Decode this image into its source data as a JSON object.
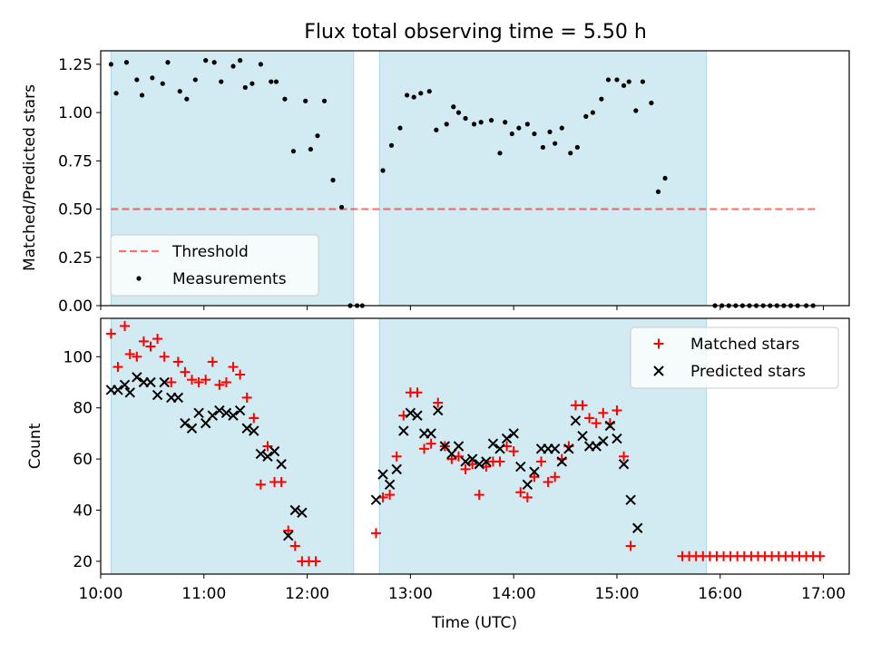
{
  "figure_title": "Flux total observing time = 5.50 h",
  "colors": {
    "shade": "#add8e6",
    "threshold": "#ff0000",
    "measurement": "#000000",
    "matched": "#ff0000",
    "predicted": "#000000"
  },
  "chart_data": [
    {
      "type": "scatter",
      "panel": "top",
      "title": "Flux total observing time = 5.50 h",
      "xlabel": "",
      "ylabel": "Matched/Predicted stars",
      "xlim": [
        "10:00",
        "17:15"
      ],
      "ylim": [
        0,
        1.32
      ],
      "yticks": [
        0.0,
        0.25,
        0.5,
        0.75,
        1.0,
        1.25
      ],
      "ytick_labels": [
        "0.00",
        "0.25",
        "0.50",
        "0.75",
        "1.00",
        "1.25"
      ],
      "shaded_intervals": [
        [
          "10:06",
          "12:27"
        ],
        [
          "12:42",
          "15:52"
        ]
      ],
      "threshold": {
        "name": "Threshold",
        "value": 0.5,
        "x_range": [
          "10:06",
          "16:57"
        ],
        "style": "dashed"
      },
      "legend_position": "lower-left",
      "series": [
        {
          "name": "Measurements",
          "points": [
            [
              "10:06",
              1.25
            ],
            [
              "10:09",
              1.1
            ],
            [
              "10:15",
              1.26
            ],
            [
              "10:21",
              1.17
            ],
            [
              "10:24",
              1.09
            ],
            [
              "10:30",
              1.18
            ],
            [
              "10:36",
              1.15
            ],
            [
              "10:39",
              1.26
            ],
            [
              "10:46",
              1.11
            ],
            [
              "10:50",
              1.07
            ],
            [
              "10:55",
              1.17
            ],
            [
              "11:01",
              1.27
            ],
            [
              "11:06",
              1.26
            ],
            [
              "11:10",
              1.16
            ],
            [
              "11:17",
              1.24
            ],
            [
              "11:21",
              1.27
            ],
            [
              "11:24",
              1.13
            ],
            [
              "11:28",
              1.15
            ],
            [
              "11:33",
              1.25
            ],
            [
              "11:39",
              1.16
            ],
            [
              "11:42",
              1.16
            ],
            [
              "11:47",
              1.07
            ],
            [
              "11:52",
              0.8
            ],
            [
              "11:59",
              1.06
            ],
            [
              "12:02",
              0.81
            ],
            [
              "12:06",
              0.88
            ],
            [
              "12:10",
              1.06
            ],
            [
              "12:15",
              0.65
            ],
            [
              "12:20",
              0.51
            ],
            [
              "12:25",
              0.0
            ],
            [
              "12:29",
              0.0
            ],
            [
              "12:32",
              0.0
            ],
            [
              "12:44",
              0.7
            ],
            [
              "12:49",
              0.83
            ],
            [
              "12:54",
              0.92
            ],
            [
              "12:58",
              1.09
            ],
            [
              "13:02",
              1.08
            ],
            [
              "13:06",
              1.1
            ],
            [
              "13:11",
              1.11
            ],
            [
              "13:15",
              0.91
            ],
            [
              "13:21",
              0.94
            ],
            [
              "13:25",
              1.03
            ],
            [
              "13:28",
              1.0
            ],
            [
              "13:32",
              0.97
            ],
            [
              "13:37",
              0.94
            ],
            [
              "13:41",
              0.95
            ],
            [
              "13:47",
              0.96
            ],
            [
              "13:52",
              0.79
            ],
            [
              "13:55",
              0.95
            ],
            [
              "13:59",
              0.89
            ],
            [
              "14:03",
              0.92
            ],
            [
              "14:08",
              0.94
            ],
            [
              "14:12",
              0.89
            ],
            [
              "14:17",
              0.82
            ],
            [
              "14:21",
              0.9
            ],
            [
              "14:24",
              0.84
            ],
            [
              "14:28",
              0.92
            ],
            [
              "14:33",
              0.79
            ],
            [
              "14:37",
              0.82
            ],
            [
              "14:42",
              0.98
            ],
            [
              "14:46",
              1.0
            ],
            [
              "14:51",
              1.07
            ],
            [
              "14:55",
              1.17
            ],
            [
              "15:00",
              1.17
            ],
            [
              "15:04",
              1.14
            ],
            [
              "15:07",
              1.16
            ],
            [
              "15:11",
              1.01
            ],
            [
              "15:15",
              1.16
            ],
            [
              "15:20",
              1.05
            ],
            [
              "15:24",
              0.59
            ],
            [
              "15:28",
              0.66
            ],
            [
              "15:57",
              0.0
            ],
            [
              "16:01",
              0.0
            ],
            [
              "16:05",
              0.0
            ],
            [
              "16:09",
              0.0
            ],
            [
              "16:13",
              0.0
            ],
            [
              "16:17",
              0.0
            ],
            [
              "16:21",
              0.0
            ],
            [
              "16:25",
              0.0
            ],
            [
              "16:29",
              0.0
            ],
            [
              "16:33",
              0.0
            ],
            [
              "16:37",
              0.0
            ],
            [
              "16:41",
              0.0
            ],
            [
              "16:45",
              0.0
            ],
            [
              "16:50",
              0.0
            ],
            [
              "16:54",
              0.0
            ]
          ]
        }
      ]
    },
    {
      "type": "scatter",
      "panel": "bottom",
      "title": "",
      "xlabel": "Time (UTC)",
      "ylabel": "Count",
      "xlim": [
        "10:00",
        "17:15"
      ],
      "ylim": [
        15,
        115
      ],
      "yticks": [
        20,
        40,
        60,
        80,
        100
      ],
      "xticks": [
        "10:00",
        "11:00",
        "12:00",
        "13:00",
        "14:00",
        "15:00",
        "16:00",
        "17:00"
      ],
      "shaded_intervals": [
        [
          "10:06",
          "12:27"
        ],
        [
          "12:42",
          "15:52"
        ]
      ],
      "legend_position": "upper-right",
      "series": [
        {
          "name": "Matched stars",
          "marker": "plus",
          "points": [
            [
              "10:06",
              109
            ],
            [
              "10:10",
              96
            ],
            [
              "10:14",
              112
            ],
            [
              "10:17",
              101
            ],
            [
              "10:21",
              100
            ],
            [
              "10:25",
              106
            ],
            [
              "10:29",
              104
            ],
            [
              "10:33",
              107
            ],
            [
              "10:37",
              100
            ],
            [
              "10:41",
              90
            ],
            [
              "10:45",
              98
            ],
            [
              "10:49",
              94
            ],
            [
              "10:53",
              91
            ],
            [
              "10:57",
              90
            ],
            [
              "11:01",
              91
            ],
            [
              "11:05",
              98
            ],
            [
              "11:09",
              89
            ],
            [
              "11:13",
              90
            ],
            [
              "11:17",
              96
            ],
            [
              "11:21",
              93
            ],
            [
              "11:25",
              84
            ],
            [
              "11:29",
              76
            ],
            [
              "11:33",
              50
            ],
            [
              "11:37",
              65
            ],
            [
              "11:41",
              51
            ],
            [
              "11:45",
              51
            ],
            [
              "11:49",
              32
            ],
            [
              "11:53",
              26
            ],
            [
              "11:57",
              20
            ],
            [
              "12:01",
              20
            ],
            [
              "12:05",
              20
            ],
            [
              "12:40",
              31
            ],
            [
              "12:44",
              45
            ],
            [
              "12:48",
              46
            ],
            [
              "12:52",
              61
            ],
            [
              "12:56",
              77
            ],
            [
              "13:00",
              86
            ],
            [
              "13:04",
              86
            ],
            [
              "13:08",
              64
            ],
            [
              "13:12",
              66
            ],
            [
              "13:16",
              82
            ],
            [
              "13:20",
              65
            ],
            [
              "13:24",
              60
            ],
            [
              "13:28",
              61
            ],
            [
              "13:32",
              56
            ],
            [
              "13:36",
              58
            ],
            [
              "13:40",
              46
            ],
            [
              "13:44",
              57
            ],
            [
              "13:48",
              59
            ],
            [
              "13:52",
              59
            ],
            [
              "13:56",
              65
            ],
            [
              "14:00",
              63
            ],
            [
              "14:04",
              47
            ],
            [
              "14:08",
              45
            ],
            [
              "14:12",
              53
            ],
            [
              "14:16",
              59
            ],
            [
              "14:20",
              51
            ],
            [
              "14:24",
              53
            ],
            [
              "14:28",
              60
            ],
            [
              "14:32",
              65
            ],
            [
              "14:36",
              81
            ],
            [
              "14:40",
              81
            ],
            [
              "14:44",
              76
            ],
            [
              "14:48",
              74
            ],
            [
              "14:52",
              78
            ],
            [
              "14:56",
              74
            ],
            [
              "15:00",
              79
            ],
            [
              "15:04",
              61
            ],
            [
              "15:08",
              26
            ],
            [
              "15:38",
              22
            ],
            [
              "15:42",
              22
            ],
            [
              "15:46",
              22
            ],
            [
              "15:50",
              22
            ],
            [
              "15:54",
              22
            ],
            [
              "15:58",
              22
            ],
            [
              "16:02",
              22
            ],
            [
              "16:06",
              22
            ],
            [
              "16:10",
              22
            ],
            [
              "16:14",
              22
            ],
            [
              "16:18",
              22
            ],
            [
              "16:22",
              22
            ],
            [
              "16:26",
              22
            ],
            [
              "16:30",
              22
            ],
            [
              "16:34",
              22
            ],
            [
              "16:38",
              22
            ],
            [
              "16:42",
              22
            ],
            [
              "16:46",
              22
            ],
            [
              "16:50",
              22
            ],
            [
              "16:54",
              22
            ],
            [
              "16:58",
              22
            ]
          ]
        },
        {
          "name": "Predicted stars",
          "marker": "x",
          "points": [
            [
              "10:06",
              87
            ],
            [
              "10:10",
              87
            ],
            [
              "10:14",
              89
            ],
            [
              "10:17",
              86
            ],
            [
              "10:21",
              92
            ],
            [
              "10:25",
              90
            ],
            [
              "10:29",
              90
            ],
            [
              "10:33",
              85
            ],
            [
              "10:37",
              90
            ],
            [
              "10:41",
              84
            ],
            [
              "10:45",
              84
            ],
            [
              "10:49",
              74
            ],
            [
              "10:53",
              72
            ],
            [
              "10:57",
              78
            ],
            [
              "11:01",
              74
            ],
            [
              "11:05",
              77
            ],
            [
              "11:09",
              79
            ],
            [
              "11:13",
              78
            ],
            [
              "11:17",
              77
            ],
            [
              "11:21",
              79
            ],
            [
              "11:25",
              72
            ],
            [
              "11:29",
              71
            ],
            [
              "11:33",
              62
            ],
            [
              "11:37",
              61
            ],
            [
              "11:41",
              63
            ],
            [
              "11:45",
              58
            ],
            [
              "11:49",
              30
            ],
            [
              "11:53",
              40
            ],
            [
              "11:57",
              39
            ],
            [
              "12:40",
              44
            ],
            [
              "12:44",
              54
            ],
            [
              "12:48",
              50
            ],
            [
              "12:52",
              56
            ],
            [
              "12:56",
              71
            ],
            [
              "13:00",
              78
            ],
            [
              "13:04",
              77
            ],
            [
              "13:08",
              70
            ],
            [
              "13:12",
              70
            ],
            [
              "13:16",
              79
            ],
            [
              "13:20",
              65
            ],
            [
              "13:24",
              62
            ],
            [
              "13:28",
              65
            ],
            [
              "13:32",
              59
            ],
            [
              "13:36",
              60
            ],
            [
              "13:40",
              58
            ],
            [
              "13:44",
              59
            ],
            [
              "13:48",
              66
            ],
            [
              "13:52",
              64
            ],
            [
              "13:56",
              68
            ],
            [
              "14:00",
              70
            ],
            [
              "14:04",
              57
            ],
            [
              "14:08",
              50
            ],
            [
              "14:12",
              55
            ],
            [
              "14:16",
              64
            ],
            [
              "14:20",
              64
            ],
            [
              "14:24",
              64
            ],
            [
              "14:28",
              59
            ],
            [
              "14:32",
              64
            ],
            [
              "14:36",
              75
            ],
            [
              "14:40",
              69
            ],
            [
              "14:44",
              65
            ],
            [
              "14:48",
              65
            ],
            [
              "14:52",
              67
            ],
            [
              "14:56",
              73
            ],
            [
              "15:00",
              68
            ],
            [
              "15:04",
              58
            ],
            [
              "15:08",
              44
            ],
            [
              "15:12",
              33
            ]
          ]
        }
      ]
    }
  ]
}
